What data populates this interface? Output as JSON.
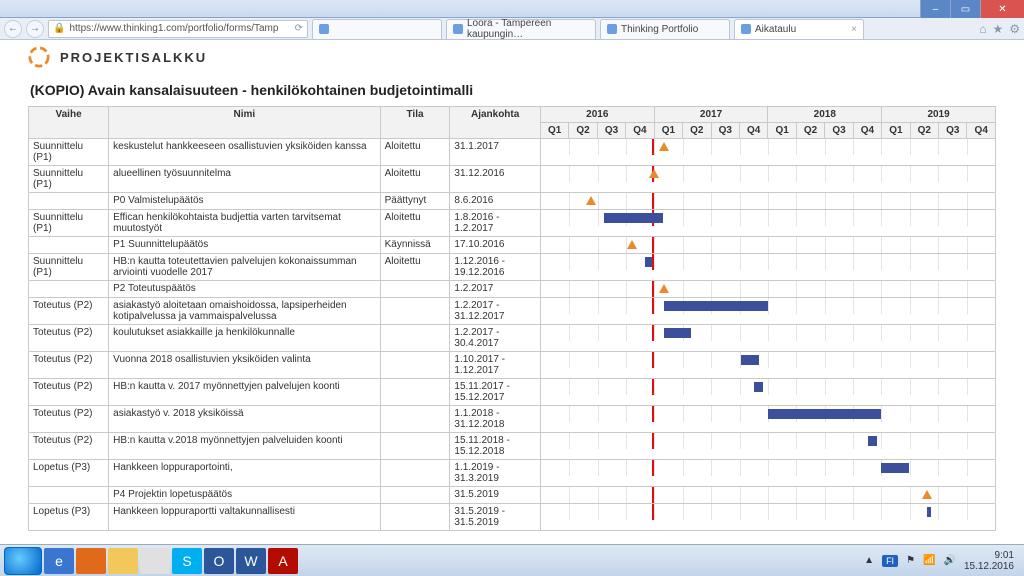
{
  "window": {
    "min": "–",
    "max": "▭",
    "close": "✕"
  },
  "browser": {
    "url": "https://www.thinking1.com/portfolio/forms/Tamp",
    "back": "←",
    "fwd": "→",
    "reload": "⟳",
    "home": "⌂",
    "fav": "★",
    "gear": "⚙",
    "tabs": [
      {
        "label": "",
        "active": false
      },
      {
        "label": "Loora - Tampereen kaupungin…",
        "active": false
      },
      {
        "label": "Thinking Portfolio",
        "active": false
      },
      {
        "label": "Aikataulu",
        "active": true
      }
    ]
  },
  "page": {
    "brand": "PROJEKTISALKKU",
    "heading_right": "",
    "title": "(KOPIO) Avain kansalaisuuteen - henkilökohtainen budjetointimalli",
    "columns": {
      "vaihe": "Vaihe",
      "nimi": "Nimi",
      "tila": "Tila",
      "ajankohta": "Ajankohta"
    },
    "years": [
      "2016",
      "2017",
      "2018",
      "2019"
    ],
    "quarters": [
      "Q1",
      "Q2",
      "Q3",
      "Q4"
    ],
    "today_pct": 24.5,
    "rows": [
      {
        "vaihe": "Suunnittelu (P1)",
        "nimi": "keskustelut hankkeeseen osallistuvien yksiköiden kanssa",
        "tila": "Aloitettu",
        "ajank": "31.1.2017",
        "type": "mile",
        "pos": 27
      },
      {
        "vaihe": "Suunnittelu (P1)",
        "nimi": "alueellinen työsuunnitelma",
        "tila": "Aloitettu",
        "ajank": "31.12.2016",
        "type": "mile",
        "pos": 25
      },
      {
        "vaihe": "",
        "nimi": "P0 Valmistelupäätös",
        "tila": "Päättynyt",
        "ajank": "8.6.2016",
        "type": "mile",
        "pos": 11
      },
      {
        "vaihe": "Suunnittelu (P1)",
        "nimi": "Effican henkilökohtaista budjettia varten tarvitsemat muutostyöt",
        "tila": "Aloitettu",
        "ajank": "1.8.2016 - 1.2.2017",
        "type": "bar",
        "start": 14,
        "end": 27
      },
      {
        "vaihe": "",
        "nimi": "P1 Suunnittelupäätös",
        "tila": "Käynnissä",
        "ajank": "17.10.2016",
        "type": "mile",
        "pos": 20
      },
      {
        "vaihe": "Suunnittelu (P1)",
        "nimi": "HB:n kautta toteutettavien palvelujen kokonaissumman arviointi vuodelle 2017",
        "tila": "Aloitettu",
        "ajank": "1.12.2016 - 19.12.2016",
        "type": "bar",
        "start": 23,
        "end": 24.5
      },
      {
        "vaihe": "",
        "nimi": "P2 Toteutuspäätös",
        "tila": "",
        "ajank": "1.2.2017",
        "type": "mile",
        "pos": 27
      },
      {
        "vaihe": "Toteutus (P2)",
        "nimi": "asiakastyö aloitetaan omaishoidossa, lapsiperheiden kotipalvelussa ja vammaispalvelussa",
        "tila": "",
        "ajank": "1.2.2017 - 31.12.2017",
        "type": "bar",
        "start": 27,
        "end": 50
      },
      {
        "vaihe": "Toteutus (P2)",
        "nimi": "koulutukset asiakkaille ja henkilökunnalle",
        "tila": "",
        "ajank": "1.2.2017 - 30.4.2017",
        "type": "bar",
        "start": 27,
        "end": 33
      },
      {
        "vaihe": "Toteutus (P2)",
        "nimi": "Vuonna 2018 osallistuvien yksiköiden valinta",
        "tila": "",
        "ajank": "1.10.2017 - 1.12.2017",
        "type": "bar",
        "start": 44,
        "end": 48
      },
      {
        "vaihe": "Toteutus (P2)",
        "nimi": "HB:n kautta v. 2017 myönnettyjen palvelujen koonti",
        "tila": "",
        "ajank": "15.11.2017 - 15.12.2017",
        "type": "bar",
        "start": 47,
        "end": 49
      },
      {
        "vaihe": "Toteutus (P2)",
        "nimi": "asiakastyö v. 2018 yksiköissä",
        "tila": "",
        "ajank": "1.1.2018 - 31.12.2018",
        "type": "bar",
        "start": 50,
        "end": 75
      },
      {
        "vaihe": "Toteutus (P2)",
        "nimi": "HB:n kautta v.2018 myönnettyjen palveluiden koonti",
        "tila": "",
        "ajank": "15.11.2018 - 15.12.2018",
        "type": "bar",
        "start": 72,
        "end": 74
      },
      {
        "vaihe": "Lopetus (P3)",
        "nimi": "Hankkeen loppuraportointi,",
        "tila": "",
        "ajank": "1.1.2019 - 31.3.2019",
        "type": "bar",
        "start": 75,
        "end": 81
      },
      {
        "vaihe": "",
        "nimi": "P4 Projektin lopetuspäätös",
        "tila": "",
        "ajank": "31.5.2019",
        "type": "mile",
        "pos": 85
      },
      {
        "vaihe": "Lopetus (P3)",
        "nimi": "Hankkeen loppuraportti valtakunnallisesti",
        "tila": "",
        "ajank": "31.5.2019 - 31.5.2019",
        "type": "bar",
        "start": 85,
        "end": 85.5
      }
    ]
  },
  "taskbar": {
    "lang": "FI",
    "time": "9:01",
    "date": "15.12.2016",
    "apps": [
      {
        "name": "ie-icon",
        "bg": "#3a76d0",
        "glyph": "e"
      },
      {
        "name": "firefox-icon",
        "bg": "#e06a1a",
        "glyph": ""
      },
      {
        "name": "folder-icon",
        "bg": "#f3c85b",
        "glyph": ""
      },
      {
        "name": "chrome-icon",
        "bg": "#e0e0e0",
        "glyph": ""
      },
      {
        "name": "skype-icon",
        "bg": "#00aff0",
        "glyph": "S"
      },
      {
        "name": "outlook-icon",
        "bg": "#2b579a",
        "glyph": "O"
      },
      {
        "name": "word-icon",
        "bg": "#2b579a",
        "glyph": "W"
      },
      {
        "name": "acrobat-icon",
        "bg": "#b30b00",
        "glyph": "A"
      }
    ]
  }
}
